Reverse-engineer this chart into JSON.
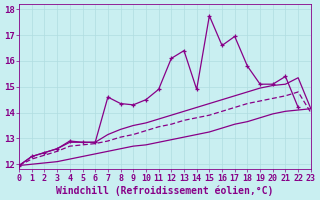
{
  "xlabel": "Windchill (Refroidissement éolien,°C)",
  "xlim": [
    0,
    23
  ],
  "ylim": [
    11.8,
    18.2
  ],
  "yticks": [
    12,
    13,
    14,
    15,
    16,
    17,
    18
  ],
  "xticks": [
    0,
    1,
    2,
    3,
    4,
    5,
    6,
    7,
    8,
    9,
    10,
    11,
    12,
    13,
    14,
    15,
    16,
    17,
    18,
    19,
    20,
    21,
    22,
    23
  ],
  "bg_color": "#c9eff1",
  "grid_color": "#b0dde0",
  "line_color": "#880088",
  "line1_y": [
    11.95,
    12.3,
    12.45,
    12.6,
    12.9,
    12.85,
    12.85,
    14.6,
    14.35,
    14.3,
    14.5,
    14.9,
    16.1,
    16.4,
    14.9,
    17.75,
    16.6,
    16.95,
    15.8,
    15.1,
    15.1,
    15.4,
    14.2,
    null
  ],
  "line2_y": [
    11.95,
    12.3,
    12.45,
    12.6,
    12.85,
    12.85,
    12.85,
    13.15,
    13.35,
    13.5,
    13.6,
    13.75,
    13.9,
    14.05,
    14.2,
    14.35,
    14.5,
    14.65,
    14.8,
    14.95,
    15.05,
    15.1,
    15.35,
    14.15
  ],
  "line3_y": [
    11.95,
    12.2,
    12.35,
    12.5,
    12.7,
    12.75,
    12.8,
    12.9,
    13.05,
    13.15,
    13.3,
    13.45,
    13.55,
    13.7,
    13.8,
    13.9,
    14.05,
    14.2,
    14.35,
    14.45,
    14.55,
    14.65,
    14.8,
    14.0
  ],
  "line4_y": [
    11.95,
    12.0,
    12.05,
    12.1,
    12.2,
    12.3,
    12.4,
    12.5,
    12.6,
    12.7,
    12.75,
    12.85,
    12.95,
    13.05,
    13.15,
    13.25,
    13.4,
    13.55,
    13.65,
    13.8,
    13.95,
    14.05,
    14.1,
    14.15
  ],
  "tick_fontsize": 6,
  "label_fontsize": 7,
  "figsize": [
    3.2,
    2.0
  ],
  "dpi": 100
}
